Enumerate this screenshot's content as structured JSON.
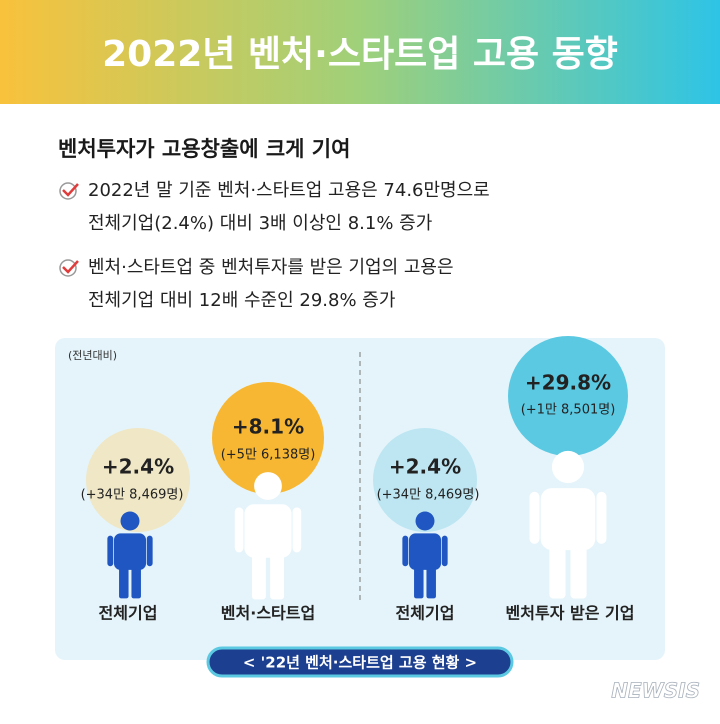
{
  "header": {
    "title": "2022년 벤처·스타트업 고용 동향"
  },
  "headline": "벤처투자가 고용창출에 크게 기여",
  "bullets": [
    {
      "lines": [
        "2022년 말 기준 벤처·스타트업 고용은 74.6만명으로",
        "전체기업(2.4%) 대비 3배 이상인 8.1% 증가"
      ]
    },
    {
      "lines": [
        "벤처·스타트업 중 벤처투자를 받은 기업의 고용은",
        "전체기업 대비 12배 수준인 29.8% 증가"
      ]
    }
  ],
  "panel": {
    "note": "(전년대비)",
    "groups": [
      {
        "label": "전체기업",
        "rate": "+2.4%",
        "count": "(+34만 8,469명)"
      },
      {
        "label": "벤처·스타트업",
        "rate": "+8.1%",
        "count": "(+5만 6,138명)"
      },
      {
        "label": "전체기업",
        "rate": "+2.4%",
        "count": "(+34만 8,469명)"
      },
      {
        "label": "벤처투자 받은 기업",
        "rate": "+29.8%",
        "count": "(+1만 8,501명)"
      }
    ],
    "caption": "< '22년 벤처·스타트업 고용 현황 >"
  },
  "watermark": "NEWSIS"
}
